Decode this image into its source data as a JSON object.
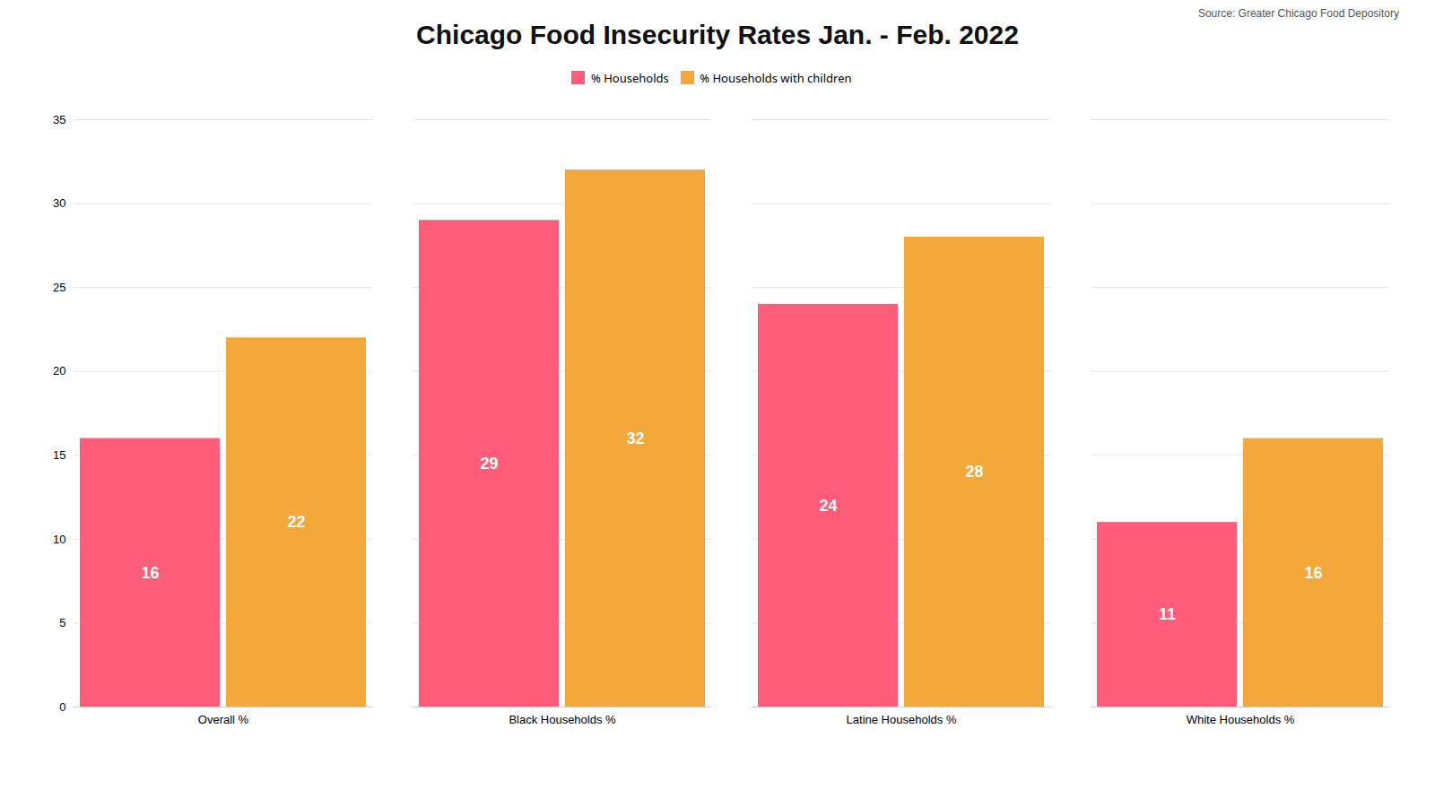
{
  "chart_data": {
    "type": "bar",
    "title": "Chicago Food Insecurity Rates Jan. - Feb. 2022",
    "annotations": [
      "Source: Greater Chicago Food Depository"
    ],
    "categories": [
      "Overall %",
      "Black Households %",
      "Latine Households %",
      "White Households %"
    ],
    "series": [
      {
        "name": "% Households",
        "color": "#FF5C7A",
        "values": [
          16,
          29,
          24,
          11
        ]
      },
      {
        "name": "% Households with children",
        "color": "#F5A83A",
        "values": [
          22,
          32,
          28,
          16
        ]
      }
    ],
    "ylim": [
      0,
      35
    ],
    "yticks": [
      0,
      5,
      10,
      15,
      20,
      25,
      30,
      35
    ],
    "grid": true,
    "legend": "top",
    "data_labels": true
  }
}
